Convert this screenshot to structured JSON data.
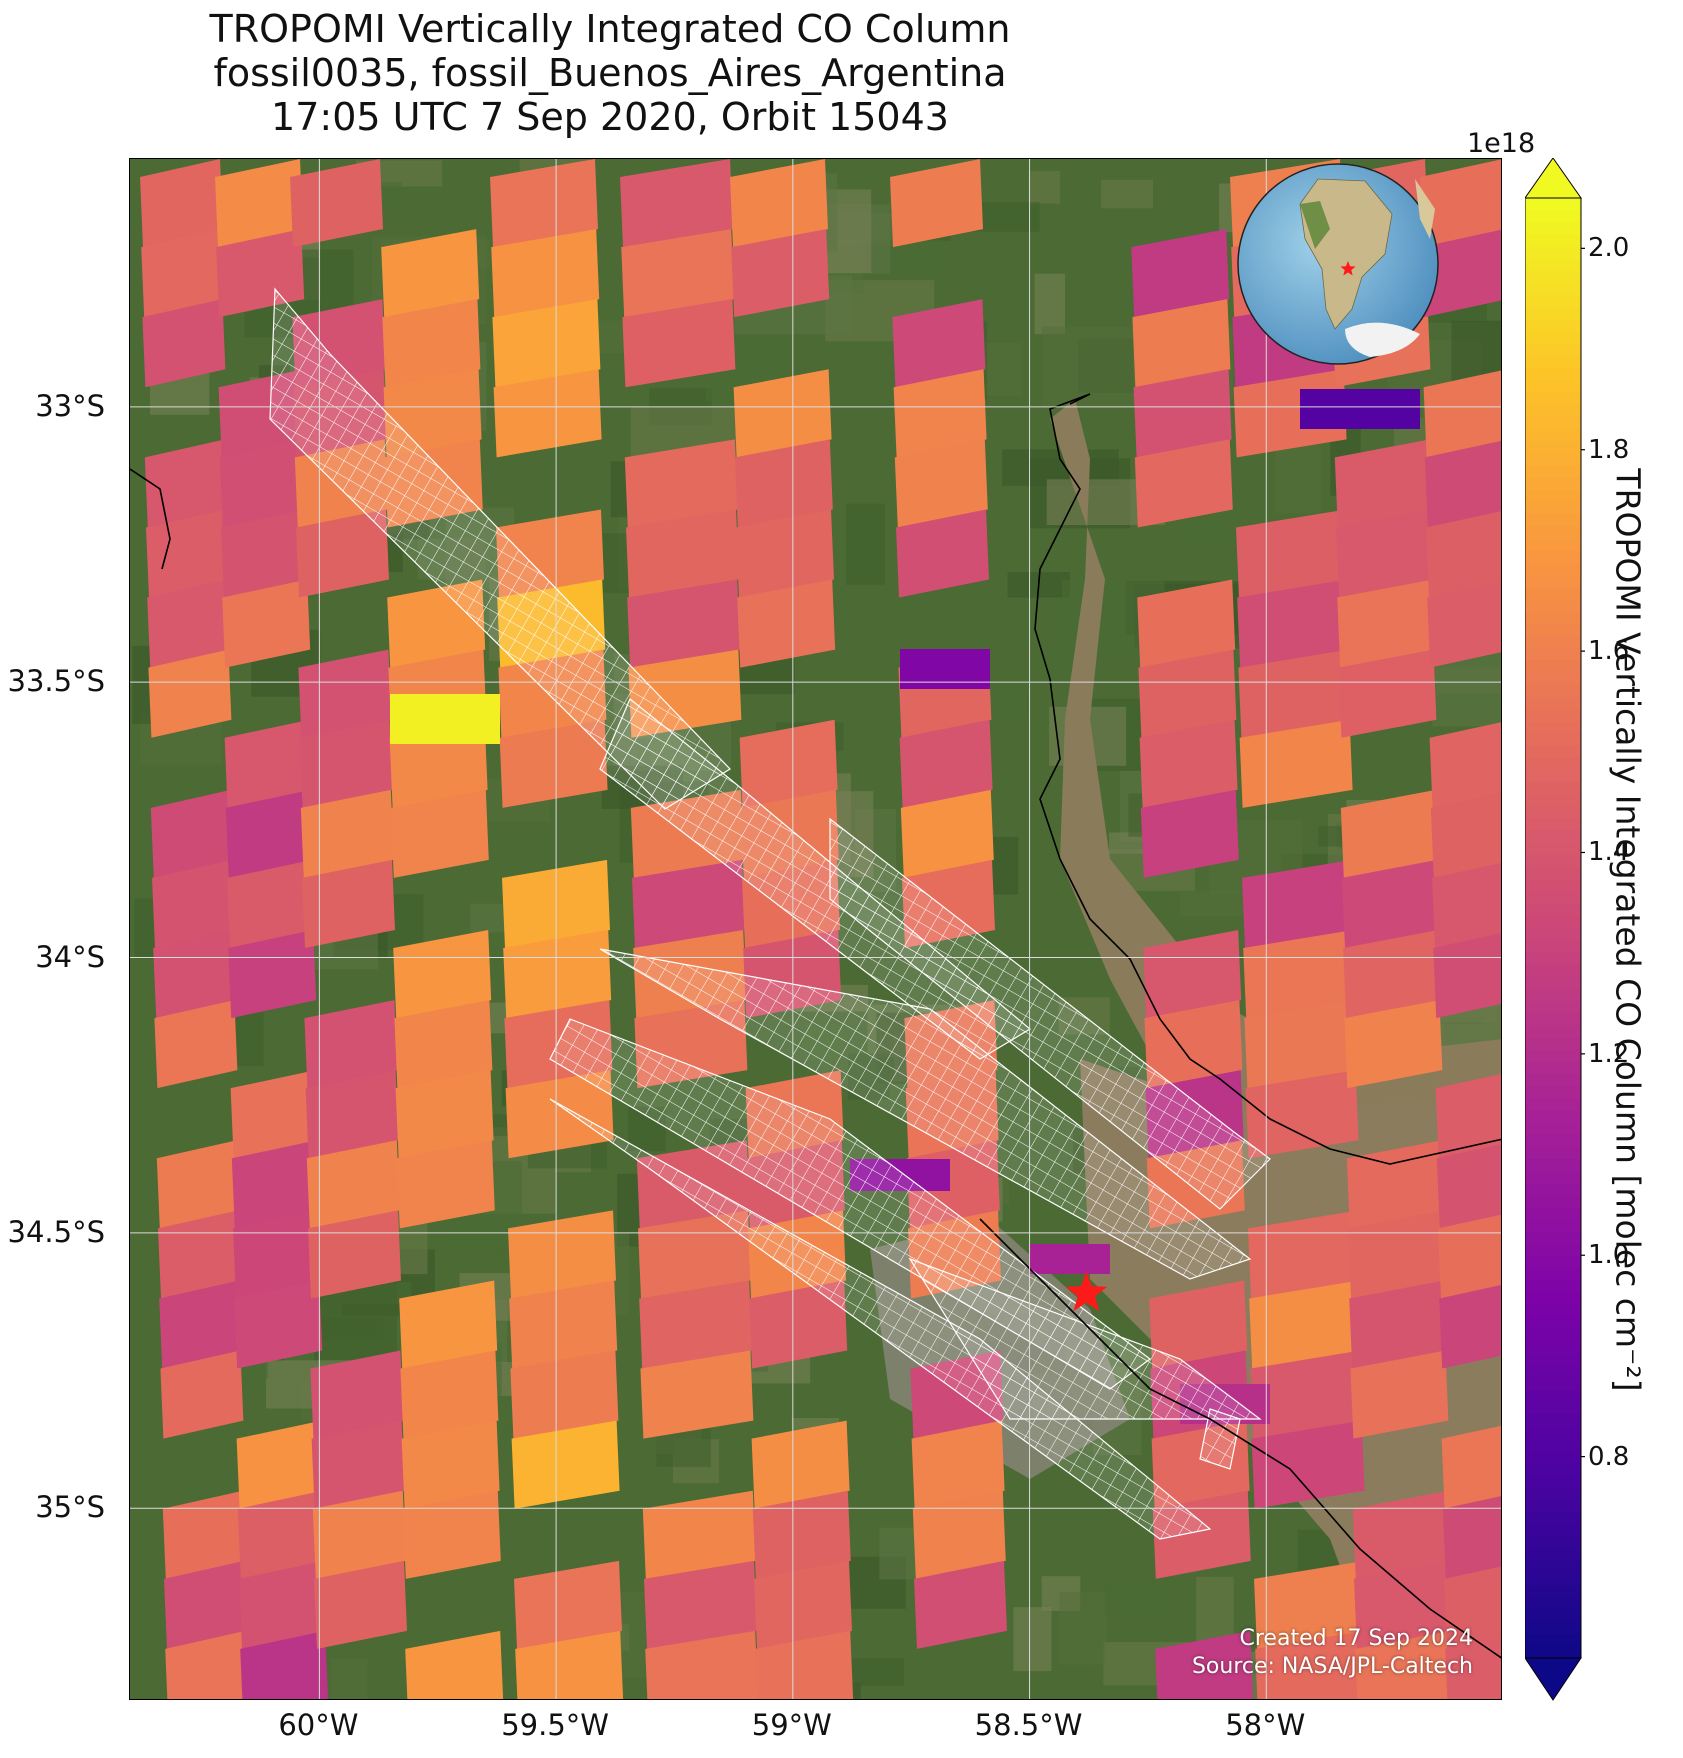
{
  "title": {
    "line1": "TROPOMI Vertically Integrated CO Column",
    "line2": "fossil0035, fossil_Buenos_Aires_Argentina",
    "line3": "17:05 UTC 7 Sep 2020, Orbit 15043"
  },
  "map": {
    "lon_range": [
      -60.4,
      -57.5
    ],
    "lat_range": [
      -35.35,
      -32.55
    ],
    "lat_ticks": [
      {
        "value": -33.0,
        "label": "33°S"
      },
      {
        "value": -33.5,
        "label": "33.5°S"
      },
      {
        "value": -34.0,
        "label": "34°S"
      },
      {
        "value": -34.5,
        "label": "34.5°S"
      },
      {
        "value": -35.0,
        "label": "35°S"
      }
    ],
    "lon_ticks": [
      {
        "value": -60.0,
        "label": "60°W"
      },
      {
        "value": -59.5,
        "label": "59.5°W"
      },
      {
        "value": -59.0,
        "label": "59°W"
      },
      {
        "value": -58.5,
        "label": "58.5°W"
      },
      {
        "value": -58.0,
        "label": "58°W"
      }
    ],
    "grid": true,
    "target_marker": {
      "lon": -58.38,
      "lat": -34.61,
      "symbol": "star",
      "color": "#ff1a1a"
    },
    "inset_globe": {
      "position": "top-right",
      "marker": "star",
      "marker_color": "#ff1a1a"
    },
    "colors": {
      "land": "#4a6a33",
      "river_water": "#8a7a5a",
      "coast": "#000000",
      "grid": "#dddddd",
      "overlay_hatch": "#ffffff"
    }
  },
  "colorbar": {
    "colormap": "plasma",
    "vmin": 0.6,
    "vmax": 2.05,
    "extend": "both",
    "exponent_label": "1e18",
    "ticks": [
      {
        "value": 0.8,
        "label": "0.8"
      },
      {
        "value": 1.0,
        "label": "1.0"
      },
      {
        "value": 1.2,
        "label": "1.2"
      },
      {
        "value": 1.4,
        "label": "1.4"
      },
      {
        "value": 1.6,
        "label": "1.6"
      },
      {
        "value": 1.8,
        "label": "1.8"
      },
      {
        "value": 2.0,
        "label": "2.0"
      }
    ],
    "label": "TROPOMI Vertically Integrated CO Column [molec cm⁻²]"
  },
  "credits": {
    "created": "Created 17 Sep 2024",
    "source": "Source: NASA/JPL-Caltech"
  }
}
